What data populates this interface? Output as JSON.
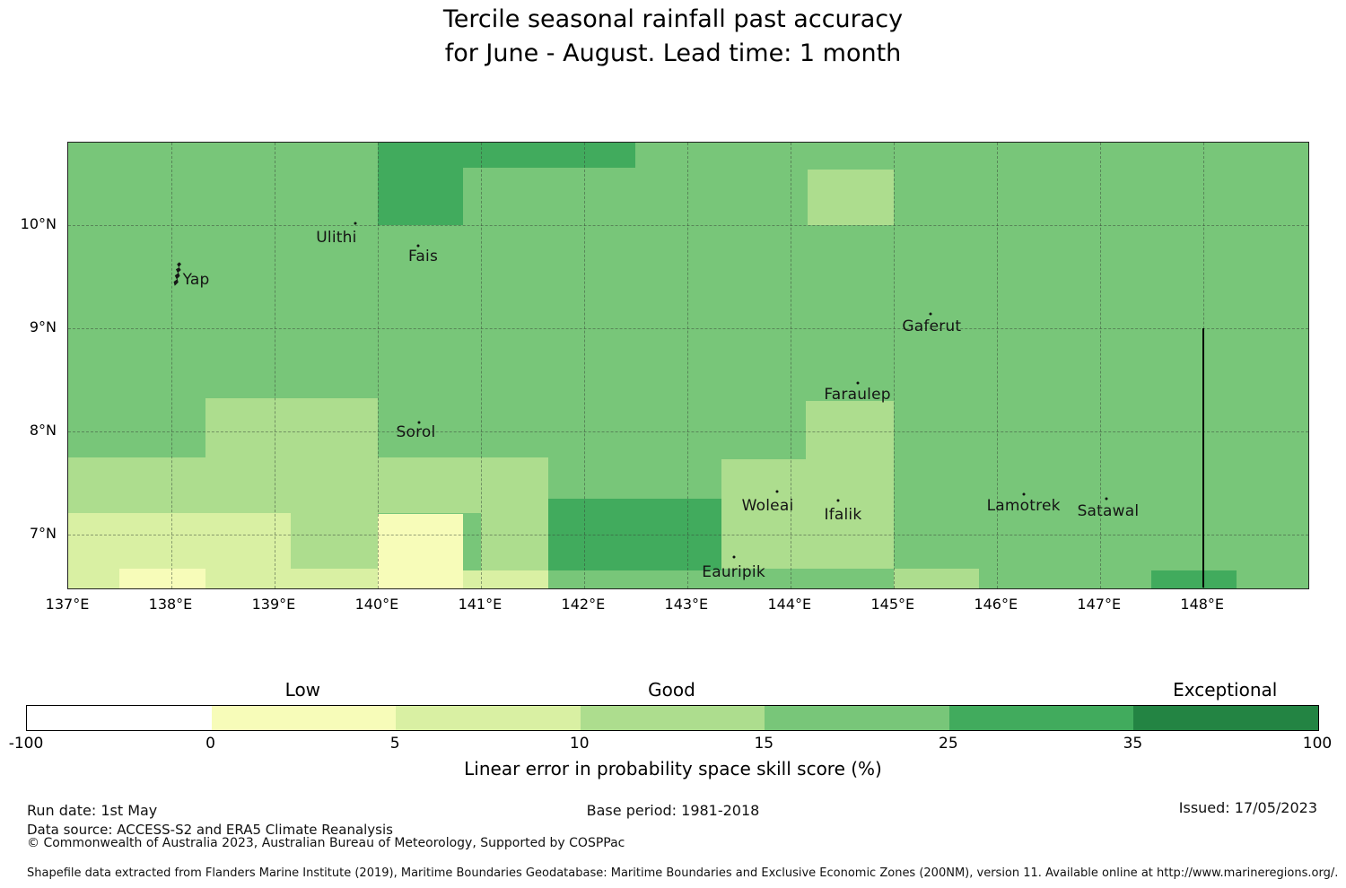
{
  "title": {
    "line1": "Tercile seasonal rainfall past accuracy",
    "line2": "for June - August. Lead time: 1 month"
  },
  "chart_data": {
    "type": "heatmap",
    "title": "Tercile seasonal rainfall past accuracy for June - August. Lead time: 1 month",
    "lon_min": 137.0,
    "lon_max": 149.02,
    "lat_min": 6.48,
    "lat_max": 10.8,
    "x_ticks": [
      {
        "lon": 137,
        "label": "137°E"
      },
      {
        "lon": 138,
        "label": "138°E"
      },
      {
        "lon": 139,
        "label": "139°E"
      },
      {
        "lon": 140,
        "label": "140°E"
      },
      {
        "lon": 141,
        "label": "141°E"
      },
      {
        "lon": 142,
        "label": "142°E"
      },
      {
        "lon": 143,
        "label": "143°E"
      },
      {
        "lon": 144,
        "label": "144°E"
      },
      {
        "lon": 145,
        "label": "145°E"
      },
      {
        "lon": 146,
        "label": "146°E"
      },
      {
        "lon": 147,
        "label": "147°E"
      },
      {
        "lon": 148,
        "label": "148°E"
      }
    ],
    "y_ticks": [
      {
        "lat": 10,
        "label": "10°N"
      },
      {
        "lat": 9,
        "label": "9°N"
      },
      {
        "lat": 8,
        "label": "8°N"
      },
      {
        "lat": 7,
        "label": "7°N"
      }
    ],
    "base": {
      "color": "#78c679",
      "bin": "15-25"
    },
    "cells": [
      {
        "lon": [
          140.0,
          140.83
        ],
        "lat": [
          10.0,
          10.8
        ],
        "bin": "25-35",
        "color": "#41ab5d"
      },
      {
        "lon": [
          140.83,
          142.5
        ],
        "lat": [
          10.56,
          10.8
        ],
        "bin": "25-35",
        "color": "#41ab5d"
      },
      {
        "lon": [
          141.65,
          143.33
        ],
        "lat": [
          6.65,
          7.35
        ],
        "bin": "25-35",
        "color": "#41ab5d"
      },
      {
        "lon": [
          147.5,
          148.32
        ],
        "lat": [
          6.48,
          6.65
        ],
        "bin": "25-35",
        "color": "#41ab5d"
      },
      {
        "lon": [
          144.17,
          145.0
        ],
        "lat": [
          10.0,
          10.54
        ],
        "bin": "10-15",
        "color": "#addd8e"
      },
      {
        "lon": [
          144.15,
          145.0
        ],
        "lat": [
          7.73,
          8.3
        ],
        "bin": "10-15",
        "color": "#addd8e"
      },
      {
        "lon": [
          143.33,
          145.0
        ],
        "lat": [
          6.67,
          7.73
        ],
        "bin": "10-15",
        "color": "#addd8e"
      },
      {
        "lon": [
          138.33,
          140.0
        ],
        "lat": [
          7.21,
          8.32
        ],
        "bin": "10-15",
        "color": "#addd8e"
      },
      {
        "lon": [
          137.0,
          138.33
        ],
        "lat": [
          7.21,
          7.75
        ],
        "bin": "10-15",
        "color": "#addd8e"
      },
      {
        "lon": [
          139.16,
          140.0
        ],
        "lat": [
          6.67,
          7.21
        ],
        "bin": "10-15",
        "color": "#addd8e"
      },
      {
        "lon": [
          140.0,
          141.0
        ],
        "lat": [
          7.21,
          7.75
        ],
        "bin": "10-15",
        "color": "#addd8e"
      },
      {
        "lon": [
          141.0,
          141.65
        ],
        "lat": [
          6.65,
          7.75
        ],
        "bin": "10-15",
        "color": "#addd8e"
      },
      {
        "lon": [
          145.0,
          145.83
        ],
        "lat": [
          6.48,
          6.67
        ],
        "bin": "10-15",
        "color": "#addd8e"
      },
      {
        "lon": [
          137.0,
          138.33
        ],
        "lat": [
          6.48,
          7.21
        ],
        "bin": "5-10",
        "color": "#d9f0a3"
      },
      {
        "lon": [
          138.33,
          139.16
        ],
        "lat": [
          6.48,
          7.21
        ],
        "bin": "5-10",
        "color": "#d9f0a3"
      },
      {
        "lon": [
          139.16,
          140.0
        ],
        "lat": [
          6.48,
          6.67
        ],
        "bin": "5-10",
        "color": "#d9f0a3"
      },
      {
        "lon": [
          140.83,
          141.65
        ],
        "lat": [
          6.48,
          6.65
        ],
        "bin": "5-10",
        "color": "#d9f0a3"
      },
      {
        "lon": [
          140.0,
          140.83
        ],
        "lat": [
          6.48,
          7.2
        ],
        "bin": "0-5",
        "color": "#f7fcb9"
      },
      {
        "lon": [
          137.5,
          138.33
        ],
        "lat": [
          6.48,
          6.67
        ],
        "bin": "0-5",
        "color": "#f7fcb9"
      }
    ],
    "islands": [
      {
        "name": "Yap",
        "shape": "yap",
        "shape_lon": 138.06,
        "shape_lat": 9.55,
        "label_lon": 138.24,
        "label_lat": 9.47
      },
      {
        "name": "Ulithi",
        "dot_lon": 139.78,
        "dot_lat": 10.02,
        "label_lon": 139.6,
        "label_lat": 9.88
      },
      {
        "name": "Fais",
        "dot_lon": 140.39,
        "dot_lat": 9.8,
        "label_lon": 140.44,
        "label_lat": 9.7
      },
      {
        "name": "Sorol",
        "dot_lon": 140.4,
        "dot_lat": 8.09,
        "label_lon": 140.37,
        "label_lat": 7.99
      },
      {
        "name": "Gaferut",
        "dot_lon": 145.36,
        "dot_lat": 9.14,
        "label_lon": 145.37,
        "label_lat": 9.02
      },
      {
        "name": "Faraulep",
        "dot_lon": 144.65,
        "dot_lat": 8.47,
        "label_lon": 144.65,
        "label_lat": 8.36
      },
      {
        "name": "Woleai",
        "dot_lon": 143.87,
        "dot_lat": 7.42,
        "label_lon": 143.78,
        "label_lat": 7.28
      },
      {
        "name": "Ifalik",
        "dot_lon": 144.46,
        "dot_lat": 7.33,
        "label_lon": 144.51,
        "label_lat": 7.19
      },
      {
        "name": "Lamotrek",
        "dot_lon": 146.26,
        "dot_lat": 7.39,
        "label_lon": 146.26,
        "label_lat": 7.28
      },
      {
        "name": "Satawal",
        "dot_lon": 147.06,
        "dot_lat": 7.35,
        "label_lon": 147.08,
        "label_lat": 7.23
      },
      {
        "name": "Eauripik",
        "dot_lon": 143.45,
        "dot_lat": 6.78,
        "label_lon": 143.45,
        "label_lat": 6.64
      }
    ],
    "eez_boundary": {
      "lon": 148.0,
      "lat_bottom": 6.49,
      "lat_top": 9.0
    }
  },
  "colorbar": {
    "bins": [
      {
        "range": "-100 to 0",
        "color": "#ffffff"
      },
      {
        "range": "0 to 5",
        "color": "#f7fcb9"
      },
      {
        "range": "5 to 10",
        "color": "#d9f0a3"
      },
      {
        "range": "10 to 15",
        "color": "#addd8e"
      },
      {
        "range": "15 to 25",
        "color": "#78c679"
      },
      {
        "range": "25 to 35",
        "color": "#41ab5d"
      },
      {
        "range": "35 to 100",
        "color": "#238443"
      }
    ],
    "tick_labels": [
      "-100",
      "0",
      "5",
      "10",
      "15",
      "25",
      "35",
      "100"
    ],
    "category_labels": [
      {
        "label": "Low",
        "segment": 1
      },
      {
        "label": "Good",
        "segment": 3
      },
      {
        "label": "Exceptional",
        "segment": 6
      }
    ],
    "axis_label": "Linear error in probability space skill score (%)"
  },
  "footer": {
    "run_date": "Run date: 1st May",
    "base_period": "Base period: 1981-2018",
    "issued": "Issued: 17/05/2023",
    "data_source": "Data source: ACCESS-S2 and ERA5 Climate Reanalysis",
    "copyright": "© Commonwealth of Australia 2023, Australian Bureau of Meteorology, Supported by COSPPac",
    "shapefile_note": "Shapefile data extracted from Flanders Marine Institute (2019), Maritime Boundaries Geodatabase: Maritime Boundaries and Exclusive Economic Zones (200NM), version 11. Available online at http://www.marineregions.org/."
  }
}
